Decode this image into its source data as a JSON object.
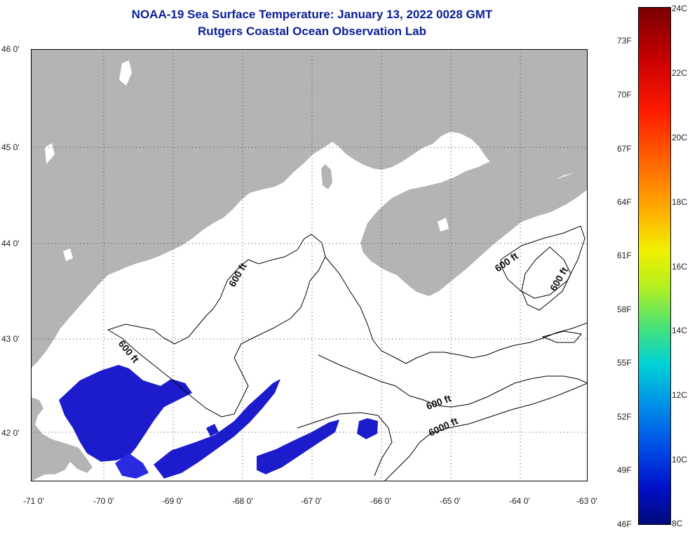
{
  "title": "NOAA-19 Sea Surface Temperature:  January 13, 2022 0028 GMT",
  "subtitle": "Rutgers Coastal Ocean Observation Lab",
  "lat_labels": [
    "46 0'",
    "45 0'",
    "44 0'",
    "43 0'",
    "42 0'"
  ],
  "lon_labels": [
    "-71 0'",
    "-70 0'",
    "-69 0'",
    "-68 0'",
    "-67 0'",
    "-66 0'",
    "-65 0'",
    "-64 0'",
    "-63 0'"
  ],
  "contour_labels": [
    "600 ft",
    "600 ft",
    "600 ft",
    "600 ft",
    "600 ft",
    "6000 ft"
  ],
  "colorbar": {
    "fahrenheit": [
      "73F",
      "70F",
      "67F",
      "64F",
      "61F",
      "58F",
      "55F",
      "52F",
      "49F",
      "46F"
    ],
    "celsius": [
      "24C",
      "22C",
      "20C",
      "18C",
      "16C",
      "14C",
      "12C",
      "10C",
      "8C"
    ]
  },
  "colors": {
    "title": "#0a1e96",
    "land": "#b4b4b4",
    "cold_sst": "#1c1ccc",
    "contour": "#000000"
  }
}
